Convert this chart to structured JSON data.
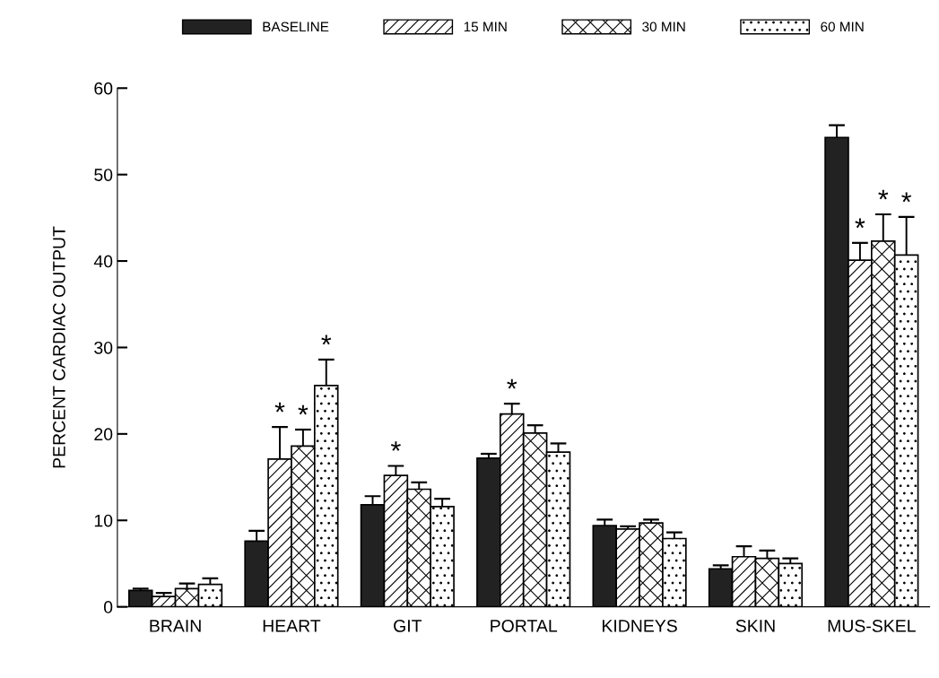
{
  "chart_data": {
    "type": "bar",
    "ylabel": "PERCENT CARDIAC OUTPUT",
    "categories": [
      "BRAIN",
      "HEART",
      "GIT",
      "PORTAL",
      "KIDNEYS",
      "SKIN",
      "MUS-SKEL"
    ],
    "series": [
      {
        "name": "BASELINE",
        "color": "#222222",
        "values": [
          1.9,
          7.6,
          11.8,
          17.2,
          9.4,
          4.4,
          54.3
        ],
        "errors": [
          [
            1.9,
            2.1
          ],
          [
            7.6,
            8.8
          ],
          [
            11.8,
            12.8
          ],
          [
            17.2,
            17.7
          ],
          [
            9.4,
            10.1
          ],
          [
            4.4,
            4.8
          ],
          [
            54.3,
            55.7
          ]
        ]
      },
      {
        "name": "15 MIN",
        "value_labels": [
          null,
          "*",
          "*",
          "*",
          null,
          null,
          "*"
        ],
        "values": [
          1.2,
          17.1,
          15.2,
          22.3,
          9.0,
          5.8,
          40.1
        ],
        "errors": [
          [
            1.2,
            1.6
          ],
          [
            17.1,
            20.8
          ],
          [
            15.2,
            16.3
          ],
          [
            22.3,
            23.5
          ],
          [
            9.0,
            9.3
          ],
          [
            5.8,
            7.0
          ],
          [
            40.1,
            42.1
          ]
        ]
      },
      {
        "name": "30 MIN",
        "value_labels": [
          null,
          "*",
          null,
          null,
          null,
          null,
          "*"
        ],
        "values": [
          2.1,
          18.6,
          13.6,
          20.1,
          9.7,
          5.6,
          42.3
        ],
        "errors": [
          [
            2.1,
            2.7
          ],
          [
            18.6,
            20.5
          ],
          [
            13.6,
            14.4
          ],
          [
            20.1,
            21.0
          ],
          [
            9.7,
            10.1
          ],
          [
            5.6,
            6.5
          ],
          [
            42.3,
            45.4
          ]
        ]
      },
      {
        "name": "60 MIN",
        "value_labels": [
          null,
          "*",
          null,
          null,
          null,
          null,
          "*"
        ],
        "values": [
          2.6,
          25.6,
          11.6,
          17.9,
          7.9,
          5.0,
          40.7
        ],
        "errors": [
          [
            2.6,
            3.3
          ],
          [
            25.6,
            28.6
          ],
          [
            11.6,
            12.5
          ],
          [
            17.9,
            18.9
          ],
          [
            7.9,
            8.6
          ],
          [
            5.0,
            5.6
          ],
          [
            40.7,
            45.1
          ]
        ]
      }
    ],
    "ylim": [
      0,
      60
    ],
    "yticks": [
      0,
      10,
      20,
      30,
      40,
      50,
      60
    ],
    "grid": false,
    "legend": "top"
  }
}
